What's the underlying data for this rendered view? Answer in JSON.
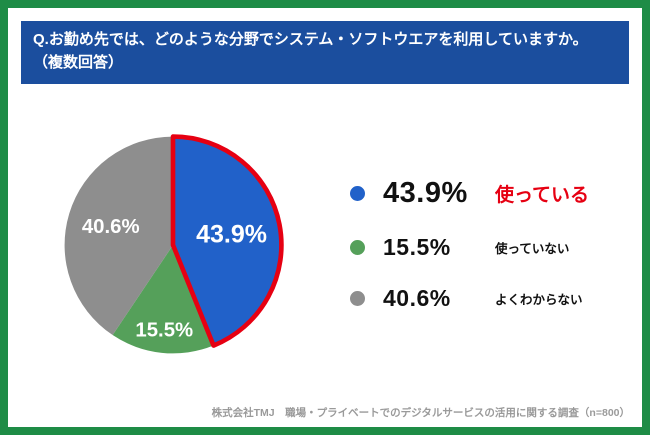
{
  "header": {
    "line1": "Q.お勤め先では、どのような分野でシステム・ソフトウエアを利用していますか。",
    "line2": "（複数回答）"
  },
  "footer": {
    "note": "株式会社TMJ　職場・プライベートでのデジタルサービスの活用に関する調査（n=800）"
  },
  "colors": {
    "frame_green": "#1e8c46",
    "header_blue": "#1b4e9e",
    "highlight_red": "#e60012",
    "slice_blue": "#2161c9",
    "slice_green": "#55a05a",
    "slice_gray": "#8e8e8e"
  },
  "chart_data": {
    "type": "pie",
    "title": "Q.お勤め先では、どのような分野でシステム・ソフトウエアを利用していますか。（複数回答）",
    "unit": "%",
    "start_angle_deg": -90,
    "direction": "clockwise",
    "legend_position": "right",
    "slice_labels_inside": true,
    "highlight_color": "#e60012",
    "slices": [
      {
        "id": "using",
        "label": "使っている",
        "value": 43.9,
        "pct_label": "43.9%",
        "color": "#2161c9",
        "highlight": true
      },
      {
        "id": "not-using",
        "label": "使っていない",
        "value": 15.5,
        "pct_label": "15.5%",
        "color": "#55a05a",
        "highlight": false
      },
      {
        "id": "unsure",
        "label": "よくわからない",
        "value": 40.6,
        "pct_label": "40.6%",
        "color": "#8e8e8e",
        "highlight": false
      }
    ]
  }
}
